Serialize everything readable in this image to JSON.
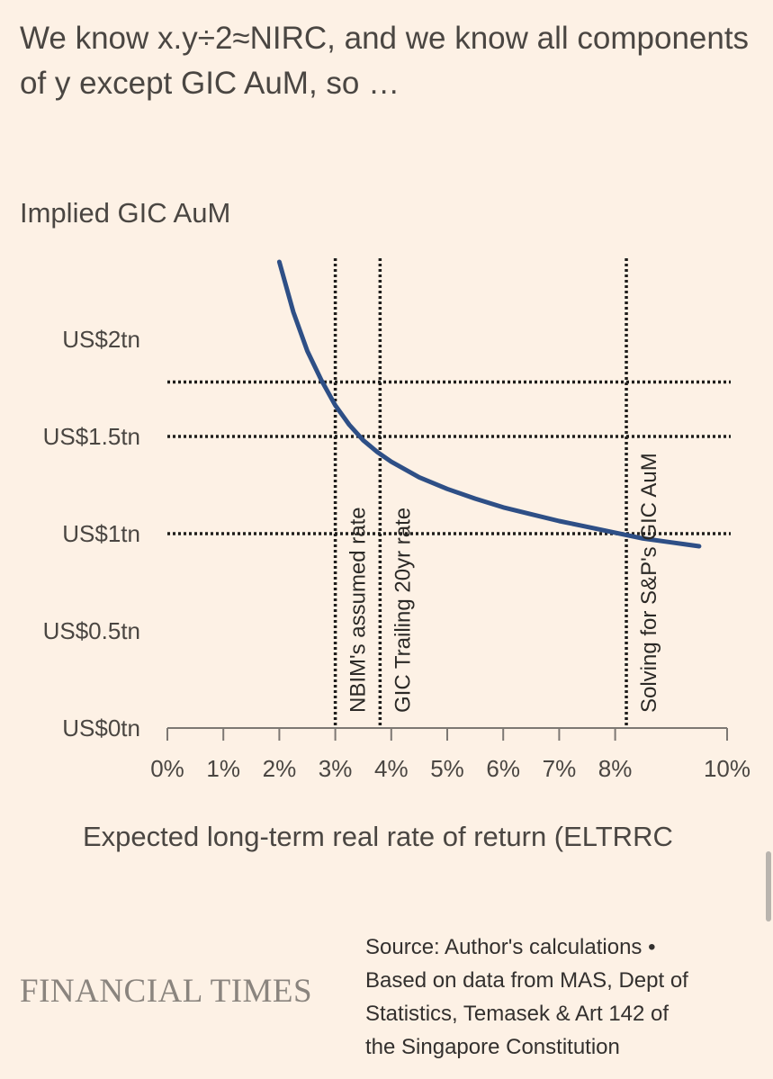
{
  "headline": {
    "line1": "We know x.y÷2≈NIRC, and we know all components",
    "line2": "of y except GIC AuM, so …"
  },
  "chart_data": {
    "type": "line",
    "title": "Implied GIC AuM",
    "xlabel": "Expected long-term real rate of return (ELTRRC",
    "ylabel": "",
    "xlim": [
      0,
      10
    ],
    "ylim": [
      0,
      2
    ],
    "x_ticks": [
      {
        "v": 0,
        "label": "0%"
      },
      {
        "v": 1,
        "label": "1%"
      },
      {
        "v": 2,
        "label": "2%"
      },
      {
        "v": 3,
        "label": "3%"
      },
      {
        "v": 4,
        "label": "4%"
      },
      {
        "v": 5,
        "label": "5%"
      },
      {
        "v": 6,
        "label": "6%"
      },
      {
        "v": 7,
        "label": "7%"
      },
      {
        "v": 8,
        "label": "8%"
      },
      {
        "v": 10,
        "label": "10%"
      }
    ],
    "y_ticks": [
      {
        "v": 0,
        "label": "US$0tn"
      },
      {
        "v": 0.5,
        "label": "US$0.5tn"
      },
      {
        "v": 1,
        "label": "US$1tn"
      },
      {
        "v": 1.5,
        "label": "US$1.5tn"
      },
      {
        "v": 2,
        "label": "US$2tn"
      }
    ],
    "series": [
      {
        "color": "#2E4F86",
        "x": [
          2.0,
          2.25,
          2.5,
          2.75,
          3.0,
          3.25,
          3.5,
          3.75,
          4.0,
          4.5,
          5.0,
          5.5,
          6.0,
          6.5,
          7.0,
          7.5,
          8.0,
          8.5,
          9.0,
          9.5
        ],
        "y": [
          2.4,
          2.14,
          1.94,
          1.79,
          1.66,
          1.56,
          1.48,
          1.42,
          1.37,
          1.29,
          1.23,
          1.18,
          1.135,
          1.1,
          1.065,
          1.035,
          1.005,
          0.975,
          0.955,
          0.935
        ]
      }
    ],
    "reference_lines": {
      "vertical": [
        {
          "x": 3.0,
          "label": "NBIM's assumed rate"
        },
        {
          "x": 3.8,
          "label": "GIC Trailing 20yr rate"
        },
        {
          "x": 8.2,
          "label": "Solving for S&P's GIC AuM"
        }
      ],
      "horizontal": [
        {
          "y": 1.78
        },
        {
          "y": 1.5
        },
        {
          "y": 1.0
        }
      ]
    },
    "grid": false
  },
  "footer": {
    "brand": "FINANCIAL TIMES",
    "source_lines": [
      "Source: Author's calculations •",
      "Based on data from MAS, Dept of",
      "Statistics, Temasek & Art 142 of",
      "the Singapore Constitution"
    ]
  },
  "colors": {
    "background": "#FDF1E5",
    "line": "#2E4F86",
    "text": "#33302E"
  }
}
